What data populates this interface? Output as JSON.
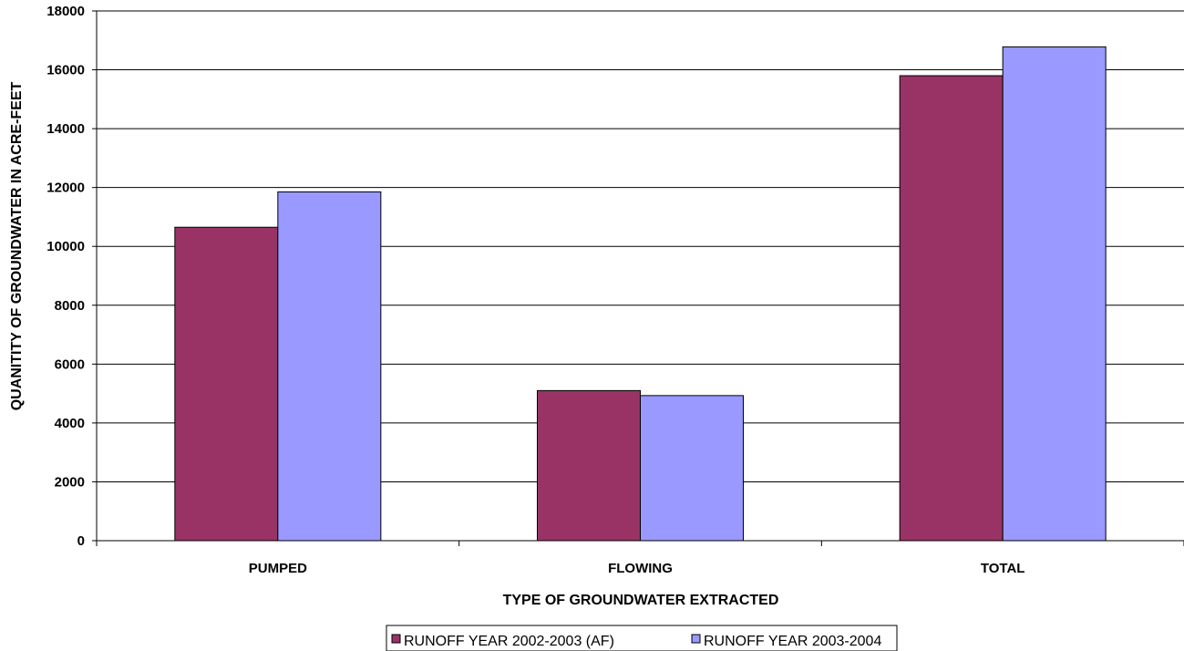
{
  "chart_data": {
    "type": "bar",
    "categories": [
      "PUMPED",
      "FLOWING",
      "TOTAL"
    ],
    "series": [
      {
        "name": "RUNOFF YEAR 2002-2003 (AF)",
        "color": "#993366",
        "values": [
          10650,
          5100,
          15800
        ]
      },
      {
        "name": "RUNOFF YEAR 2003-2004",
        "color": "#9999FF",
        "values": [
          11850,
          4930,
          16780
        ]
      }
    ],
    "xlabel": "TYPE OF GROUNDWATER EXTRACTED",
    "ylabel": "QUANITITY OF GROUNDWATER IN ACRE-FEET",
    "ylim": [
      0,
      18000
    ],
    "yticks": [
      "0",
      "2000",
      "4000",
      "6000",
      "8000",
      "10000",
      "12000",
      "14000",
      "16000",
      "18000"
    ],
    "grid": true,
    "legend_position": "bottom"
  }
}
